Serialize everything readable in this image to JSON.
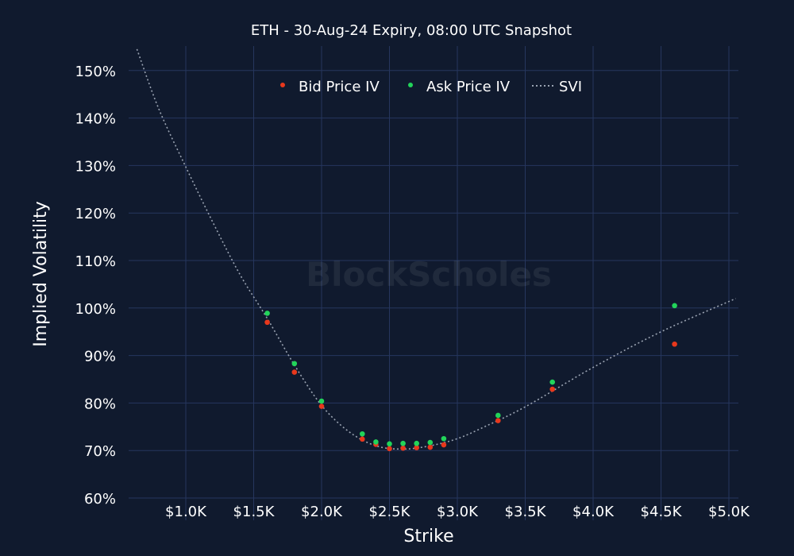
{
  "chart_data": {
    "type": "scatter",
    "title": "ETH - 30-Aug-24 Expiry, 08:00 UTC Snapshot",
    "xlabel": "Strike",
    "ylabel": "Implied Volatility",
    "xlim": [
      580,
      5070
    ],
    "ylim": [
      60,
      155
    ],
    "xticks": [
      1000,
      1500,
      2000,
      2500,
      3000,
      3500,
      4000,
      4500,
      5000
    ],
    "xtick_labels": [
      "$1.0K",
      "$1.5K",
      "$2.0K",
      "$2.5K",
      "$3.0K",
      "$3.5K",
      "$4.0K",
      "$4.5K",
      "$5.0K"
    ],
    "yticks": [
      60,
      70,
      80,
      90,
      100,
      110,
      120,
      130,
      140,
      150
    ],
    "ytick_labels": [
      "60%",
      "70%",
      "80%",
      "90%",
      "100%",
      "110%",
      "120%",
      "130%",
      "140%",
      "150%"
    ],
    "grid": true,
    "legend_position": "top-center",
    "series": [
      {
        "name": "Bid Price IV",
        "kind": "markers",
        "color": "#e8381c",
        "x": [
          1600,
          1800,
          2000,
          2300,
          2400,
          2500,
          2600,
          2700,
          2800,
          2900,
          3300,
          3700,
          4600
        ],
        "y": [
          97.0,
          86.5,
          79.3,
          72.4,
          71.3,
          70.4,
          70.5,
          70.6,
          70.7,
          71.2,
          76.3,
          82.9,
          92.4
        ]
      },
      {
        "name": "Ask Price IV",
        "kind": "markers",
        "color": "#22d45a",
        "x": [
          1600,
          1800,
          2000,
          2300,
          2400,
          2500,
          2600,
          2700,
          2800,
          2900,
          3300,
          3700,
          4600
        ],
        "y": [
          98.9,
          88.3,
          80.4,
          73.5,
          71.8,
          71.4,
          71.5,
          71.5,
          71.7,
          72.5,
          77.4,
          84.4,
          100.5
        ]
      },
      {
        "name": "SVI",
        "kind": "dotted-line",
        "color": "#9aa3b2",
        "x": [
          640,
          800,
          1000,
          1200,
          1400,
          1600,
          1800,
          2000,
          2200,
          2400,
          2600,
          2800,
          3000,
          3200,
          3500,
          4000,
          4500,
          5050
        ],
        "y": [
          154.5,
          142,
          129.7,
          118,
          107,
          97.8,
          88,
          79.5,
          74,
          71,
          70.3,
          71,
          72.5,
          75,
          79.2,
          87.5,
          95,
          102
        ]
      }
    ]
  },
  "watermark": "BlockScholes",
  "colors": {
    "background": "#101a2e",
    "grid": "#26365e"
  }
}
